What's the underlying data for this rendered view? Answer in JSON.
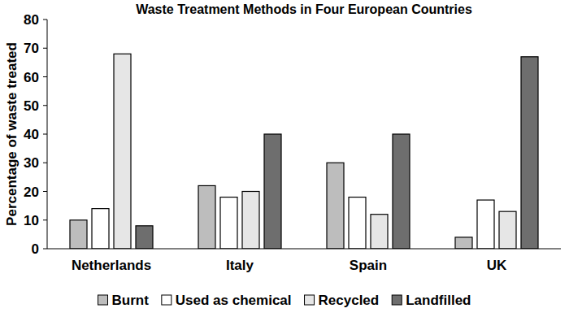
{
  "chart_data": {
    "type": "bar",
    "title": "Waste Treatment Methods in Four European Countries",
    "y_label": "Percentage of waste treated",
    "categories": [
      "Netherlands",
      "Italy",
      "Spain",
      "UK"
    ],
    "series": [
      {
        "name": "Burnt",
        "color": "#bdbdbd",
        "values": [
          10,
          22,
          30,
          4
        ]
      },
      {
        "name": "Used as chemical",
        "color": "#ffffff",
        "values": [
          14,
          18,
          18,
          17
        ]
      },
      {
        "name": "Recycled",
        "color": "#e6e6e6",
        "values": [
          68,
          20,
          12,
          13
        ]
      },
      {
        "name": "Landfilled",
        "color": "#6e6e6e",
        "values": [
          8,
          40,
          40,
          67
        ]
      }
    ],
    "ylim": [
      0,
      80
    ],
    "yticks": [
      0,
      10,
      20,
      30,
      40,
      50,
      60,
      70,
      80
    ],
    "grid": false,
    "legend": "bottom"
  }
}
